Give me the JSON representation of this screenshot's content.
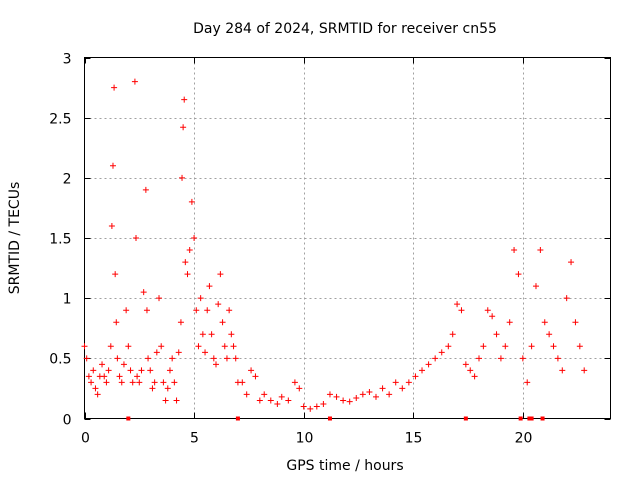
{
  "chart_data": {
    "type": "scatter",
    "title": "Day 284 of 2024, SRMTID for receiver cn55",
    "xlabel": "GPS time / hours",
    "ylabel": "SRMTID / TECUs",
    "xlim": [
      0,
      24
    ],
    "ylim": [
      0,
      3
    ],
    "x_ticks": [
      0,
      5,
      10,
      15,
      20
    ],
    "x_tick_labels": [
      "0",
      "5",
      "10",
      "15",
      "20"
    ],
    "y_ticks": [
      0,
      0.5,
      1,
      1.5,
      2,
      2.5,
      3
    ],
    "y_tick_labels": [
      "0",
      "0.5",
      "1",
      "1.5",
      "2",
      "2.5",
      "3"
    ],
    "grid": true,
    "marker": "+",
    "color": "#ff0000",
    "series": [
      {
        "name": "SRMTID",
        "x": [
          0.0,
          0.1,
          0.2,
          0.3,
          0.4,
          0.5,
          0.6,
          0.7,
          0.8,
          0.9,
          1.0,
          1.1,
          1.2,
          1.25,
          1.3,
          1.35,
          1.4,
          1.45,
          1.5,
          1.6,
          1.7,
          1.8,
          1.9,
          2.0,
          2.1,
          2.2,
          2.3,
          2.35,
          2.4,
          2.5,
          2.6,
          2.7,
          2.8,
          2.85,
          2.9,
          3.0,
          3.1,
          3.2,
          3.3,
          3.4,
          3.5,
          3.6,
          3.7,
          3.8,
          3.9,
          4.0,
          4.1,
          4.2,
          4.3,
          4.4,
          4.45,
          4.5,
          4.55,
          4.6,
          4.7,
          4.8,
          4.9,
          5.0,
          5.1,
          5.2,
          5.3,
          5.4,
          5.5,
          5.6,
          5.7,
          5.8,
          5.9,
          6.0,
          6.1,
          6.2,
          6.3,
          6.4,
          6.5,
          6.6,
          6.7,
          6.8,
          6.9,
          7.0,
          7.2,
          7.4,
          7.6,
          7.8,
          8.0,
          8.2,
          8.5,
          8.8,
          9.0,
          9.3,
          9.6,
          9.8,
          10.0,
          10.3,
          10.6,
          10.9,
          11.2,
          11.5,
          11.8,
          12.1,
          12.4,
          12.7,
          13.0,
          13.3,
          13.6,
          13.9,
          14.2,
          14.5,
          14.8,
          15.1,
          15.4,
          15.7,
          16.0,
          16.3,
          16.6,
          16.8,
          17.0,
          17.2,
          17.4,
          17.6,
          17.8,
          18.0,
          18.2,
          18.4,
          18.6,
          18.8,
          19.0,
          19.2,
          19.4,
          19.6,
          19.8,
          20.0,
          20.2,
          20.4,
          20.6,
          20.8,
          21.0,
          21.2,
          21.4,
          21.6,
          21.8,
          22.0,
          22.2,
          22.4,
          22.6,
          22.8
        ],
        "y": [
          0.6,
          0.5,
          0.35,
          0.3,
          0.4,
          0.25,
          0.2,
          0.35,
          0.45,
          0.35,
          0.3,
          0.4,
          0.6,
          1.6,
          2.1,
          2.75,
          1.2,
          0.8,
          0.5,
          0.35,
          0.3,
          0.45,
          0.9,
          0.6,
          0.4,
          0.3,
          2.8,
          1.5,
          0.35,
          0.3,
          0.4,
          1.05,
          1.9,
          0.9,
          0.5,
          0.4,
          0.25,
          0.3,
          0.55,
          1.0,
          0.6,
          0.3,
          0.15,
          0.25,
          0.4,
          0.5,
          0.3,
          0.15,
          0.55,
          0.8,
          2.0,
          2.42,
          2.65,
          1.3,
          1.2,
          1.4,
          1.8,
          1.5,
          0.9,
          0.6,
          1.0,
          0.7,
          0.55,
          0.9,
          1.1,
          0.7,
          0.5,
          0.45,
          0.95,
          1.2,
          0.8,
          0.6,
          0.5,
          0.9,
          0.7,
          0.6,
          0.5,
          0.3,
          0.3,
          0.2,
          0.4,
          0.35,
          0.15,
          0.2,
          0.15,
          0.12,
          0.18,
          0.15,
          0.3,
          0.25,
          0.1,
          0.08,
          0.1,
          0.12,
          0.2,
          0.18,
          0.15,
          0.14,
          0.17,
          0.2,
          0.22,
          0.18,
          0.25,
          0.2,
          0.3,
          0.25,
          0.3,
          0.35,
          0.4,
          0.45,
          0.5,
          0.55,
          0.6,
          0.7,
          0.95,
          0.9,
          0.45,
          0.4,
          0.35,
          0.5,
          0.6,
          0.9,
          0.85,
          0.7,
          0.5,
          0.6,
          0.8,
          1.4,
          1.2,
          0.5,
          0.3,
          0.6,
          1.1,
          1.4,
          0.8,
          0.7,
          0.6,
          0.5,
          0.4,
          1.0,
          1.3,
          0.8,
          0.6,
          0.4
        ]
      }
    ],
    "gap_markers_x": [
      2.0,
      7.0,
      11.2,
      17.4,
      19.9,
      20.3,
      20.4,
      20.9
    ]
  }
}
